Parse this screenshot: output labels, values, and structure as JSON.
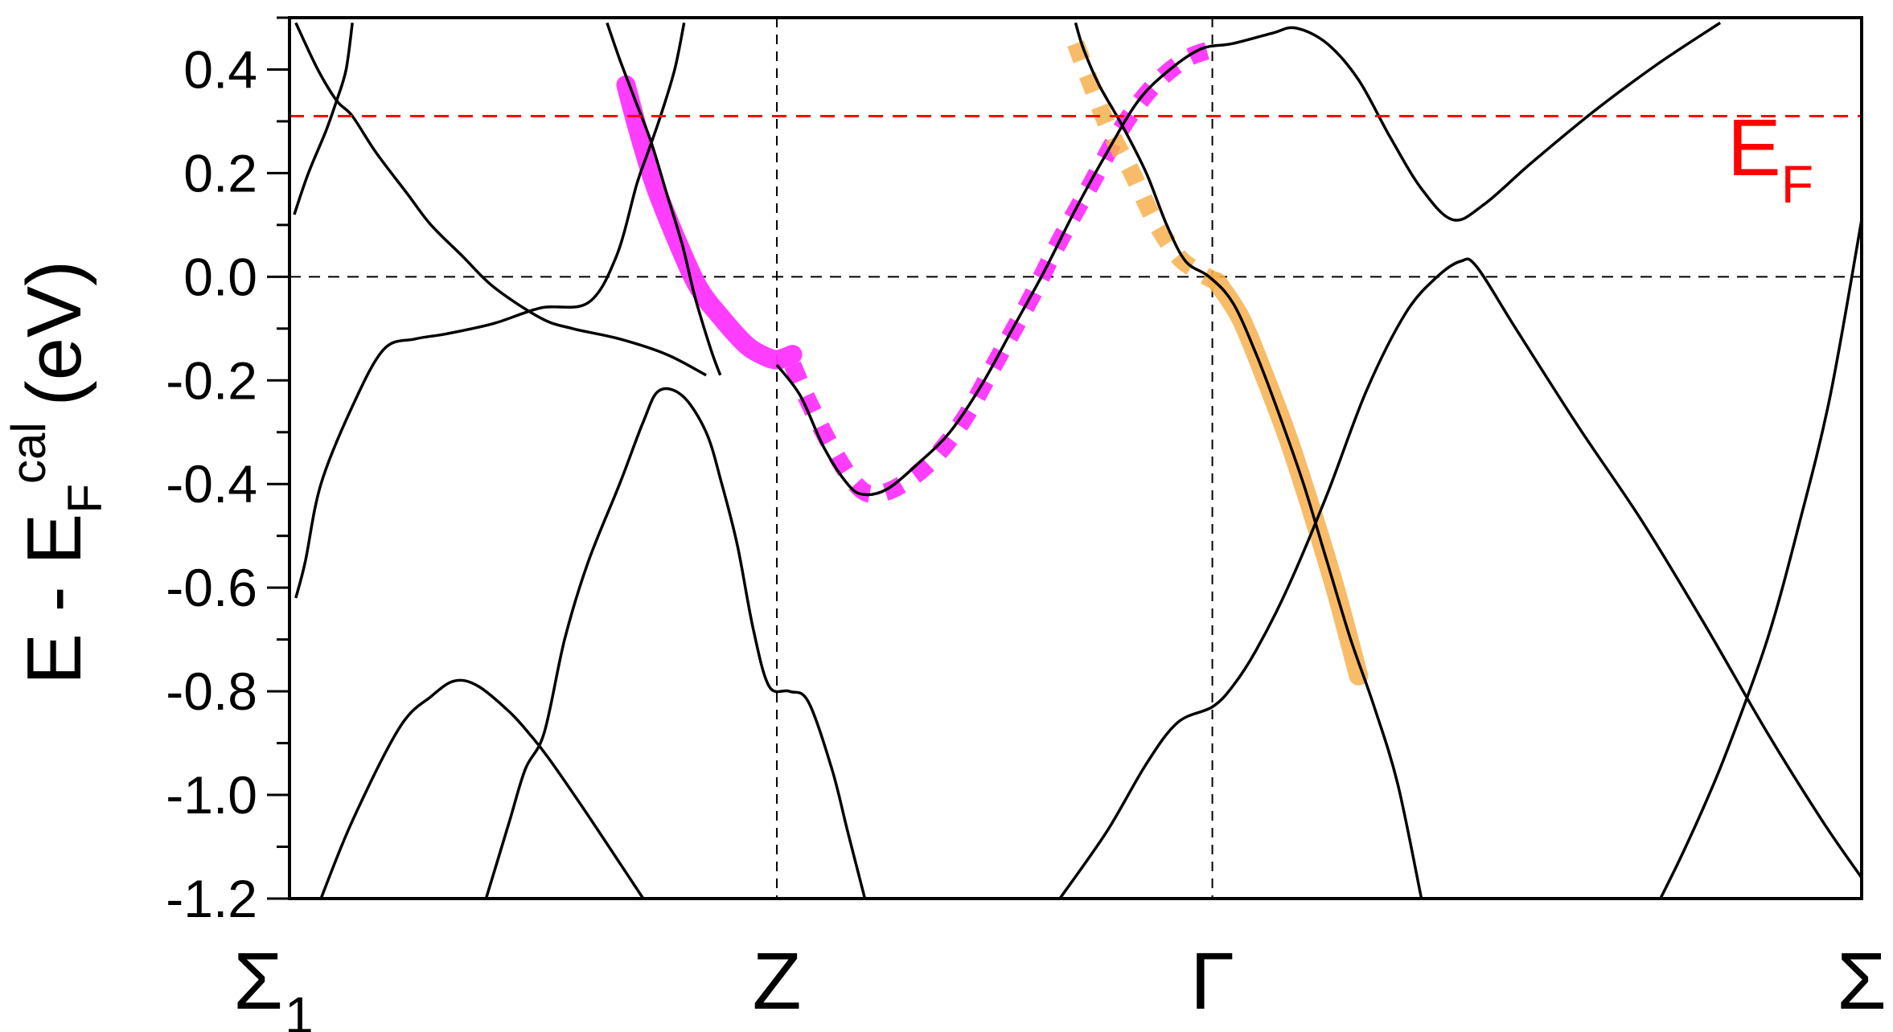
{
  "chart_data": {
    "type": "line",
    "title": "",
    "ylabel": {
      "main": "E - E",
      "sub": "F",
      "sup": "cal",
      "unit": "(eV)"
    },
    "xlabel": "",
    "ylim": [
      -1.2,
      0.5
    ],
    "yticks": [
      -1.2,
      -1.0,
      -0.8,
      -0.6,
      -0.4,
      -0.2,
      0.0,
      0.2,
      0.4
    ],
    "ytick_labels": [
      "-1.2",
      "-1.0",
      "-0.8",
      "-0.6",
      "-0.4",
      "-0.2",
      "0.0",
      "0.2",
      "0.4"
    ],
    "xlim": [
      0,
      1
    ],
    "kpoints": [
      {
        "x": 0.0,
        "label": "Σ",
        "sub": "1"
      },
      {
        "x": 0.31,
        "label": "Z",
        "sub": ""
      },
      {
        "x": 0.587,
        "label": "Γ",
        "sub": ""
      },
      {
        "x": 1.0,
        "label": "Σ",
        "sub": ""
      }
    ],
    "fermi_level": {
      "y": 0.31,
      "label": "E",
      "sub": "F",
      "color": "#ff0000"
    },
    "zero_line": {
      "y": 0.0
    },
    "colors": {
      "bands": "#000000",
      "magenta": "#ff33ff",
      "orange": "#f7b04f"
    },
    "bands": [
      {
        "name": "",
        "points": [
          [
            0.004,
            0.49
          ],
          [
            0.018,
            0.4
          ],
          [
            0.03,
            0.34
          ],
          [
            0.04,
            0.31
          ],
          [
            0.055,
            0.24
          ],
          [
            0.075,
            0.16
          ],
          [
            0.09,
            0.1
          ],
          [
            0.11,
            0.04
          ],
          [
            0.13,
            -0.02
          ],
          [
            0.16,
            -0.08
          ],
          [
            0.18,
            -0.1
          ],
          [
            0.21,
            -0.12
          ],
          [
            0.24,
            -0.15
          ],
          [
            0.265,
            -0.19
          ]
        ]
      },
      {
        "name": "",
        "points": [
          [
            0.04,
            0.49
          ],
          [
            0.036,
            0.4
          ],
          [
            0.03,
            0.34
          ],
          [
            0.023,
            0.28
          ],
          [
            0.012,
            0.2
          ],
          [
            0.003,
            0.12
          ]
        ]
      },
      {
        "name": "",
        "points": [
          [
            0.202,
            0.49
          ],
          [
            0.21,
            0.42
          ],
          [
            0.22,
            0.34
          ],
          [
            0.23,
            0.26
          ],
          [
            0.24,
            0.16
          ],
          [
            0.25,
            0.06
          ],
          [
            0.258,
            -0.04
          ],
          [
            0.268,
            -0.14
          ],
          [
            0.274,
            -0.19
          ]
        ]
      },
      {
        "name": "",
        "points": [
          [
            0.251,
            0.49
          ],
          [
            0.245,
            0.4
          ],
          [
            0.236,
            0.31
          ],
          [
            0.228,
            0.24
          ],
          [
            0.221,
            0.18
          ],
          [
            0.208,
            0.04
          ],
          [
            0.19,
            -0.05
          ],
          [
            0.16,
            -0.06
          ],
          [
            0.13,
            -0.09
          ],
          [
            0.1,
            -0.11
          ],
          [
            0.08,
            -0.12
          ],
          [
            0.06,
            -0.14
          ],
          [
            0.04,
            -0.25
          ],
          [
            0.02,
            -0.4
          ],
          [
            0.01,
            -0.55
          ],
          [
            0.004,
            -0.62
          ]
        ]
      },
      {
        "name": "",
        "points": [
          [
            0.125,
            -1.2
          ],
          [
            0.14,
            -1.05
          ],
          [
            0.15,
            -0.95
          ],
          [
            0.162,
            -0.88
          ],
          [
            0.175,
            -0.7
          ],
          [
            0.19,
            -0.55
          ],
          [
            0.21,
            -0.4
          ],
          [
            0.225,
            -0.28
          ],
          [
            0.235,
            -0.22
          ],
          [
            0.25,
            -0.23
          ],
          [
            0.265,
            -0.3
          ],
          [
            0.275,
            -0.4
          ],
          [
            0.285,
            -0.52
          ],
          [
            0.295,
            -0.68
          ],
          [
            0.305,
            -0.79
          ],
          [
            0.318,
            -0.8
          ],
          [
            0.33,
            -0.82
          ],
          [
            0.345,
            -0.95
          ],
          [
            0.355,
            -1.07
          ],
          [
            0.366,
            -1.2
          ]
        ]
      },
      {
        "name": "",
        "points": [
          [
            0.02,
            -1.2
          ],
          [
            0.04,
            -1.05
          ],
          [
            0.07,
            -0.87
          ],
          [
            0.09,
            -0.81
          ],
          [
            0.105,
            -0.78
          ],
          [
            0.12,
            -0.79
          ],
          [
            0.14,
            -0.84
          ],
          [
            0.152,
            -0.88
          ],
          [
            0.165,
            -0.93
          ],
          [
            0.19,
            -1.04
          ],
          [
            0.225,
            -1.2
          ]
        ]
      },
      {
        "name": "",
        "points": [
          [
            0.31,
            -0.17
          ],
          [
            0.325,
            -0.23
          ],
          [
            0.34,
            -0.33
          ],
          [
            0.355,
            -0.4
          ],
          [
            0.365,
            -0.42
          ],
          [
            0.38,
            -0.41
          ],
          [
            0.4,
            -0.36
          ],
          [
            0.42,
            -0.3
          ],
          [
            0.44,
            -0.21
          ],
          [
            0.46,
            -0.1
          ],
          [
            0.48,
            0.01
          ],
          [
            0.5,
            0.13
          ],
          [
            0.52,
            0.24
          ],
          [
            0.54,
            0.34
          ],
          [
            0.56,
            0.4
          ],
          [
            0.58,
            0.44
          ],
          [
            0.6,
            0.45
          ],
          [
            0.625,
            0.47
          ],
          [
            0.64,
            0.48
          ],
          [
            0.66,
            0.45
          ],
          [
            0.68,
            0.38
          ],
          [
            0.7,
            0.27
          ],
          [
            0.72,
            0.17
          ],
          [
            0.74,
            0.11
          ],
          [
            0.76,
            0.14
          ],
          [
            0.79,
            0.22
          ],
          [
            0.83,
            0.32
          ],
          [
            0.87,
            0.41
          ],
          [
            0.91,
            0.49
          ]
        ]
      },
      {
        "name": "",
        "points": [
          [
            0.5,
            0.49
          ],
          [
            0.505,
            0.44
          ],
          [
            0.515,
            0.37
          ],
          [
            0.53,
            0.29
          ],
          [
            0.545,
            0.2
          ],
          [
            0.558,
            0.1
          ],
          [
            0.57,
            0.03
          ],
          [
            0.585,
            0.0
          ],
          [
            0.6,
            -0.05
          ],
          [
            0.615,
            -0.15
          ],
          [
            0.63,
            -0.27
          ],
          [
            0.645,
            -0.4
          ],
          [
            0.66,
            -0.55
          ],
          [
            0.675,
            -0.7
          ],
          [
            0.69,
            -0.83
          ],
          [
            0.705,
            -0.98
          ],
          [
            0.72,
            -1.2
          ]
        ]
      },
      {
        "name": "",
        "points": [
          [
            0.49,
            -1.2
          ],
          [
            0.52,
            -1.07
          ],
          [
            0.545,
            -0.94
          ],
          [
            0.565,
            -0.86
          ],
          [
            0.587,
            -0.83
          ],
          [
            0.6,
            -0.79
          ],
          [
            0.615,
            -0.72
          ],
          [
            0.635,
            -0.6
          ],
          [
            0.66,
            -0.42
          ],
          [
            0.685,
            -0.22
          ],
          [
            0.71,
            -0.07
          ],
          [
            0.73,
            0.0
          ],
          [
            0.745,
            0.03
          ],
          [
            0.755,
            0.02
          ],
          [
            0.78,
            -0.1
          ],
          [
            0.82,
            -0.29
          ],
          [
            0.86,
            -0.47
          ],
          [
            0.9,
            -0.67
          ],
          [
            0.94,
            -0.88
          ],
          [
            0.975,
            -1.05
          ],
          [
            1.0,
            -1.16
          ]
        ]
      },
      {
        "name": "",
        "points": [
          [
            0.872,
            -1.2
          ],
          [
            0.885,
            -1.12
          ],
          [
            0.9,
            -1.02
          ],
          [
            0.915,
            -0.91
          ],
          [
            0.94,
            -0.7
          ],
          [
            0.96,
            -0.48
          ],
          [
            0.98,
            -0.23
          ],
          [
            1.0,
            0.11
          ]
        ]
      }
    ],
    "highlights": [
      {
        "color": "#ff33ff",
        "style": "solid",
        "points": [
          [
            0.214,
            0.37
          ],
          [
            0.222,
            0.28
          ],
          [
            0.232,
            0.18
          ],
          [
            0.245,
            0.08
          ],
          [
            0.26,
            -0.02
          ],
          [
            0.275,
            -0.08
          ],
          [
            0.29,
            -0.13
          ],
          [
            0.3,
            -0.15
          ],
          [
            0.31,
            -0.16
          ],
          [
            0.32,
            -0.15
          ]
        ]
      },
      {
        "color": "#ff33ff",
        "style": "dotted",
        "points": [
          [
            0.32,
            -0.17
          ],
          [
            0.33,
            -0.24
          ],
          [
            0.345,
            -0.33
          ],
          [
            0.36,
            -0.4
          ],
          [
            0.372,
            -0.42
          ],
          [
            0.39,
            -0.4
          ],
          [
            0.41,
            -0.35
          ],
          [
            0.43,
            -0.27
          ],
          [
            0.45,
            -0.16
          ],
          [
            0.47,
            -0.05
          ],
          [
            0.49,
            0.07
          ],
          [
            0.51,
            0.18
          ],
          [
            0.53,
            0.29
          ],
          [
            0.55,
            0.37
          ],
          [
            0.57,
            0.42
          ],
          [
            0.588,
            0.44
          ]
        ]
      },
      {
        "color": "#f7b04f",
        "style": "dotted",
        "points": [
          [
            0.5,
            0.45
          ],
          [
            0.51,
            0.37
          ],
          [
            0.522,
            0.28
          ],
          [
            0.536,
            0.2
          ],
          [
            0.55,
            0.11
          ],
          [
            0.565,
            0.04
          ],
          [
            0.578,
            0.01
          ],
          [
            0.59,
            -0.01
          ]
        ]
      },
      {
        "color": "#f7b04f",
        "style": "solid",
        "points": [
          [
            0.59,
            -0.01
          ],
          [
            0.605,
            -0.08
          ],
          [
            0.62,
            -0.19
          ],
          [
            0.635,
            -0.31
          ],
          [
            0.65,
            -0.45
          ],
          [
            0.665,
            -0.6
          ],
          [
            0.68,
            -0.77
          ]
        ]
      }
    ]
  }
}
